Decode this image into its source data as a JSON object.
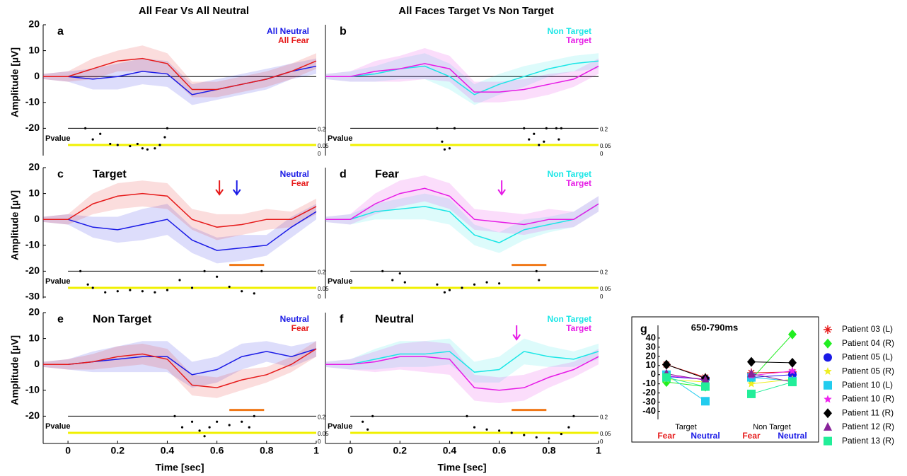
{
  "chart_data": [
    {
      "type": "line",
      "panel": "a",
      "column_title": "All Fear Vs All Neutral",
      "ylabel": "Amplitude [µV]",
      "xlim": [
        -0.1,
        1
      ],
      "ylim": [
        -30,
        20
      ],
      "yticks": [
        -20,
        -10,
        0,
        10,
        20
      ],
      "zero_line": true,
      "x": [
        -0.1,
        0,
        0.1,
        0.2,
        0.3,
        0.4,
        0.5,
        0.6,
        0.7,
        0.8,
        0.9,
        1
      ],
      "series": [
        {
          "name": "All Neutral",
          "color": "#1a1ae6",
          "values": [
            0,
            0,
            -1,
            0,
            2,
            1,
            -7,
            -5,
            -3,
            -1,
            2,
            4
          ],
          "errors": [
            1,
            2,
            4,
            5,
            5,
            5,
            4,
            4,
            4,
            4,
            3,
            3
          ]
        },
        {
          "name": "All Fear",
          "color": "#e61a1a",
          "values": [
            0,
            0,
            3,
            6,
            7,
            5,
            -5,
            -5,
            -3,
            -1,
            2,
            6
          ],
          "errors": [
            1,
            2,
            4,
            4,
            5,
            4,
            3,
            3,
            3,
            3,
            3,
            3
          ]
        }
      ],
      "pvalue": {
        "label": "Pvalue",
        "lim": [
          0,
          0.2
        ],
        "ticks": [
          0.2,
          0.05,
          0
        ],
        "tick_lines": [
          "#000000",
          "#f0f000",
          null
        ],
        "x": [
          0.07,
          0.1,
          0.13,
          0.17,
          0.2,
          0.25,
          0.28,
          0.3,
          0.32,
          0.35,
          0.37,
          0.39,
          0.4
        ],
        "values": [
          0.2,
          0.1,
          0.15,
          0.06,
          0.05,
          0.04,
          0.06,
          0.02,
          0.01,
          0.02,
          0.05,
          0.12,
          0.2
        ]
      }
    },
    {
      "type": "line",
      "panel": "b",
      "column_title": "All Faces Target Vs Non Target",
      "xlim": [
        -0.1,
        1
      ],
      "ylim": [
        -30,
        20
      ],
      "zero_line": true,
      "x": [
        -0.1,
        0,
        0.1,
        0.2,
        0.3,
        0.4,
        0.5,
        0.6,
        0.7,
        0.8,
        0.9,
        1
      ],
      "series": [
        {
          "name": "Non Target",
          "color": "#1ae6e6",
          "values": [
            0,
            0,
            1,
            3,
            4,
            0,
            -7,
            -3,
            0,
            3,
            5,
            6
          ],
          "errors": [
            1,
            2,
            3,
            4,
            5,
            5,
            4,
            4,
            4,
            3,
            3,
            3
          ]
        },
        {
          "name": "Target",
          "color": "#e61ae6",
          "values": [
            0,
            0,
            2,
            3,
            5,
            3,
            -6,
            -6,
            -5,
            -3,
            -1,
            4
          ],
          "errors": [
            1,
            2,
            4,
            5,
            6,
            5,
            4,
            4,
            4,
            4,
            3,
            3
          ]
        }
      ],
      "pvalue": {
        "label": "Pvalue",
        "lim": [
          0,
          0.2
        ],
        "ticks": [
          0.2,
          0.05,
          0
        ],
        "tick_lines": [
          "#000000",
          "#f0f000",
          null
        ],
        "x": [
          0.35,
          0.37,
          0.38,
          0.4,
          0.42,
          0.7,
          0.72,
          0.74,
          0.76,
          0.78,
          0.79,
          0.83,
          0.84,
          0.85
        ],
        "values": [
          0.2,
          0.08,
          0.01,
          0.02,
          0.2,
          0.2,
          0.1,
          0.15,
          0.05,
          0.08,
          0.2,
          0.2,
          0.1,
          0.2
        ]
      }
    },
    {
      "type": "line",
      "panel": "c",
      "title": "Target",
      "ylabel": "Amplitude [µV]",
      "xlim": [
        -0.1,
        1
      ],
      "ylim": [
        -30,
        20
      ],
      "yticks": [
        -30,
        -20,
        -10,
        0,
        10,
        20
      ],
      "x": [
        -0.1,
        0,
        0.1,
        0.2,
        0.3,
        0.4,
        0.5,
        0.6,
        0.7,
        0.8,
        0.9,
        1
      ],
      "series": [
        {
          "name": "Neutral",
          "color": "#1a1ae6",
          "values": [
            0,
            0,
            -3,
            -4,
            -2,
            0,
            -8,
            -12,
            -11,
            -10,
            -3,
            3
          ],
          "errors": [
            1,
            2,
            4,
            5,
            6,
            6,
            5,
            5,
            5,
            4,
            4,
            3
          ]
        },
        {
          "name": "Fear",
          "color": "#e61a1a",
          "values": [
            0,
            0,
            6,
            9,
            10,
            9,
            0,
            -3,
            -2,
            0,
            0,
            5
          ],
          "errors": [
            1,
            2,
            4,
            5,
            5,
            5,
            4,
            5,
            4,
            4,
            3,
            3
          ]
        }
      ],
      "window": [
        0.65,
        0.79
      ],
      "window_color": "#f07818",
      "arrows": [
        {
          "x": 0.61,
          "color": "#e61a1a"
        },
        {
          "x": 0.68,
          "color": "#1a1ae6"
        }
      ],
      "pvalue": {
        "label": "Pvalue",
        "lim": [
          0,
          0.2
        ],
        "ticks": [
          0.2,
          0.05,
          0
        ],
        "tick_lines": [
          "#000000",
          "#f0f000",
          null
        ],
        "x": [
          0.05,
          0.08,
          0.1,
          0.15,
          0.2,
          0.25,
          0.3,
          0.35,
          0.4,
          0.45,
          0.5,
          0.55,
          0.6,
          0.65,
          0.7,
          0.75,
          0.78
        ],
        "values": [
          0.2,
          0.08,
          0.05,
          0.01,
          0.02,
          0.03,
          0.02,
          0.01,
          0.03,
          0.12,
          0.05,
          0.2,
          0.15,
          0.06,
          0.02,
          0,
          0.2
        ]
      }
    },
    {
      "type": "line",
      "panel": "d",
      "title": "Fear",
      "xlim": [
        -0.1,
        1
      ],
      "ylim": [
        -30,
        20
      ],
      "x": [
        -0.1,
        0,
        0.1,
        0.2,
        0.3,
        0.4,
        0.5,
        0.6,
        0.7,
        0.8,
        0.9,
        1
      ],
      "series": [
        {
          "name": "Non Target",
          "color": "#1ae6e6",
          "values": [
            0,
            0,
            3,
            4,
            5,
            3,
            -6,
            -9,
            -4,
            -2,
            0,
            6
          ],
          "errors": [
            1,
            2,
            3,
            4,
            5,
            5,
            4,
            4,
            4,
            3,
            3,
            3
          ]
        },
        {
          "name": "Target",
          "color": "#e61ae6",
          "values": [
            0,
            0,
            6,
            10,
            12,
            9,
            0,
            -1,
            -2,
            0,
            0,
            6
          ],
          "errors": [
            1,
            2,
            4,
            5,
            5,
            5,
            4,
            4,
            4,
            4,
            3,
            3
          ]
        }
      ],
      "window": [
        0.65,
        0.79
      ],
      "window_color": "#f07818",
      "arrows": [
        {
          "x": 0.61,
          "color": "#e61ae6"
        }
      ],
      "pvalue": {
        "label": "Pvalue",
        "lim": [
          0,
          0.2
        ],
        "ticks": [
          0.2,
          0.05,
          0
        ],
        "tick_lines": [
          "#000000",
          "#f0f000",
          null
        ],
        "x": [
          0.13,
          0.17,
          0.2,
          0.22,
          0.35,
          0.38,
          0.4,
          0.45,
          0.5,
          0.55,
          0.6,
          0.75,
          0.76
        ],
        "values": [
          0.2,
          0.12,
          0.18,
          0.1,
          0.08,
          0.01,
          0.03,
          0.05,
          0.08,
          0.1,
          0.09,
          0.2,
          0.12
        ]
      }
    },
    {
      "type": "line",
      "panel": "e",
      "title": "Non Target",
      "ylabel": "Amplitude [µV]",
      "xlabel": "Time [sec]",
      "xlim": [
        -0.1,
        1
      ],
      "ylim": [
        -30,
        20
      ],
      "yticks": [
        -20,
        -10,
        0,
        10,
        20
      ],
      "xticks": [
        0,
        0.2,
        0.4,
        0.6,
        0.8,
        1
      ],
      "x": [
        -0.1,
        0,
        0.1,
        0.2,
        0.3,
        0.4,
        0.5,
        0.6,
        0.7,
        0.8,
        0.9,
        1
      ],
      "series": [
        {
          "name": "Neutral",
          "color": "#1a1ae6",
          "values": [
            0,
            0,
            1,
            2,
            3,
            3,
            -4,
            -2,
            3,
            5,
            3,
            6
          ],
          "errors": [
            1,
            2,
            4,
            5,
            6,
            6,
            5,
            5,
            5,
            4,
            4,
            3
          ]
        },
        {
          "name": "Fear",
          "color": "#e61a1a",
          "values": [
            0,
            0,
            1,
            3,
            4,
            2,
            -8,
            -9,
            -6,
            -4,
            0,
            6
          ],
          "errors": [
            1,
            2,
            3,
            4,
            4,
            4,
            4,
            4,
            4,
            3,
            3,
            3
          ]
        }
      ],
      "window": [
        0.65,
        0.79
      ],
      "window_color": "#f07818",
      "pvalue": {
        "label": "Pvalue",
        "lim": [
          0,
          0.2
        ],
        "ticks": [
          0.2,
          0.05,
          0
        ],
        "tick_lines": [
          "#000000",
          "#f0f000",
          null
        ],
        "x": [
          0.43,
          0.46,
          0.5,
          0.53,
          0.55,
          0.57,
          0.6,
          0.65,
          0.7,
          0.73,
          0.75
        ],
        "values": [
          0.2,
          0.1,
          0.15,
          0.07,
          0.02,
          0.1,
          0.15,
          0.12,
          0.15,
          0.1,
          0.2
        ]
      }
    },
    {
      "type": "line",
      "panel": "f",
      "title": "Neutral",
      "xlabel": "Time [sec]",
      "xlim": [
        -0.1,
        1
      ],
      "ylim": [
        -30,
        20
      ],
      "xticks": [
        0,
        0.2,
        0.4,
        0.6,
        0.8,
        1
      ],
      "x": [
        -0.1,
        0,
        0.1,
        0.2,
        0.3,
        0.4,
        0.5,
        0.6,
        0.7,
        0.8,
        0.9,
        1
      ],
      "series": [
        {
          "name": "Non Target",
          "color": "#1ae6e6",
          "values": [
            0,
            0,
            2,
            4,
            4,
            5,
            -3,
            -2,
            5,
            3,
            2,
            5
          ],
          "errors": [
            1,
            2,
            4,
            5,
            5,
            5,
            4,
            5,
            5,
            4,
            3,
            3
          ]
        },
        {
          "name": "Target",
          "color": "#e61ae6",
          "values": [
            0,
            0,
            1,
            3,
            3,
            2,
            -9,
            -10,
            -9,
            -5,
            -2,
            3
          ],
          "errors": [
            1,
            2,
            4,
            5,
            6,
            6,
            5,
            5,
            5,
            4,
            3,
            3
          ]
        }
      ],
      "window": [
        0.65,
        0.79
      ],
      "window_color": "#f07818",
      "arrows": [
        {
          "x": 0.67,
          "color": "#e61ae6"
        }
      ],
      "pvalue": {
        "label": "Pvalue",
        "lim": [
          0,
          0.2
        ],
        "ticks": [
          0.2,
          0.05,
          0
        ],
        "tick_lines": [
          "#000000",
          "#f0f000",
          null
        ],
        "x": [
          0.05,
          0.07,
          0.09,
          0.47,
          0.5,
          0.55,
          0.6,
          0.65,
          0.7,
          0.75,
          0.8,
          0.85,
          0.88,
          0.9
        ],
        "values": [
          0.15,
          0.08,
          0.2,
          0.2,
          0.1,
          0.08,
          0.07,
          0.05,
          0.03,
          0.01,
          0,
          0.04,
          0.1,
          0.2
        ]
      }
    },
    {
      "type": "scatter",
      "panel": "g",
      "title": "650-790ms",
      "ylim": [
        -45,
        50
      ],
      "yticks": [
        -40,
        -30,
        -20,
        -10,
        0,
        10,
        20,
        30,
        40
      ],
      "groups": [
        "Target",
        "Non Target"
      ],
      "categories": [
        "Fear",
        "Neutral",
        "Fear",
        "Neutral"
      ],
      "category_colors": [
        "#e61a1a",
        "#1a1ae6",
        "#e61a1a",
        "#1a1ae6"
      ],
      "series": [
        {
          "name": "Patient 03 (L)",
          "color": "#e61a1a",
          "marker": "asterisk",
          "values": [
            11,
            -3,
            2,
            3
          ]
        },
        {
          "name": "Patient 04 (R)",
          "color": "#22ee22",
          "marker": "diamond",
          "values": [
            -8,
            -13,
            -5,
            44
          ]
        },
        {
          "name": "Patient 05 (L)",
          "color": "#1a1ae6",
          "marker": "circle",
          "values": [
            -2,
            -5,
            -3,
            0
          ]
        },
        {
          "name": "Patient 05 (R)",
          "color": "#eeee22",
          "marker": "star",
          "values": [
            -5,
            -8,
            -10,
            -5
          ]
        },
        {
          "name": "Patient 10 (L)",
          "color": "#22ccee",
          "marker": "square",
          "values": [
            0,
            -29,
            -3,
            -7
          ]
        },
        {
          "name": "Patient 10 (R)",
          "color": "#ee22ee",
          "marker": "star",
          "values": [
            -1,
            -5,
            -1,
            4
          ]
        },
        {
          "name": "Patient 11 (R)",
          "color": "#000000",
          "marker": "diamond",
          "values": [
            11,
            -4,
            14,
            13
          ]
        },
        {
          "name": "Patient 12 (R)",
          "color": "#882299",
          "marker": "triangle",
          "values": [
            1,
            -6,
            1,
            -8
          ]
        },
        {
          "name": "Patient 13 (R)",
          "color": "#22ee99",
          "marker": "square",
          "values": [
            -3,
            -13,
            -21,
            -8
          ]
        }
      ]
    }
  ]
}
